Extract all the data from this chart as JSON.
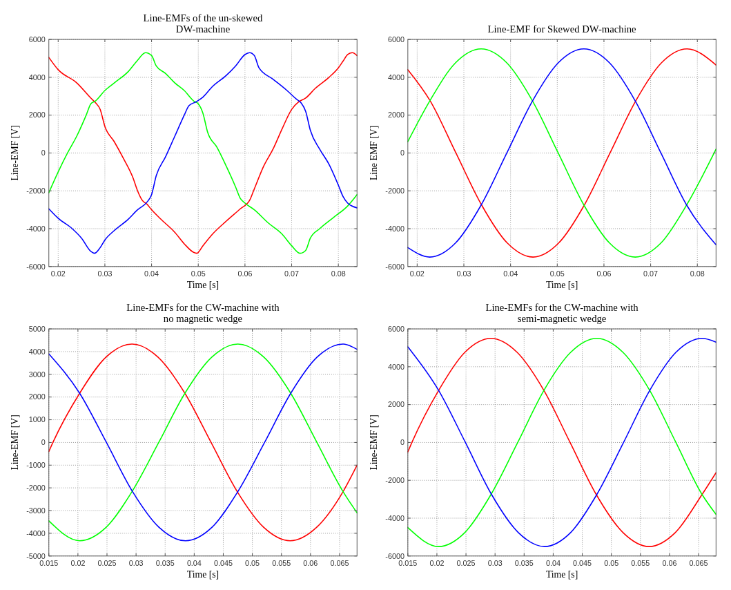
{
  "chart_data": [
    {
      "type": "line",
      "title": "Line-EMFs of the un-skewed\nDW-machine",
      "xlabel": "Time [s]",
      "ylabel": "Line-EMF [V]",
      "xlim": [
        0.018,
        0.084
      ],
      "ylim": [
        -6000,
        6000
      ],
      "xticks": [
        0.02,
        0.03,
        0.04,
        0.05,
        0.06,
        0.07,
        0.08
      ],
      "yticks": [
        -6000,
        -4000,
        -2000,
        0,
        2000,
        4000,
        6000
      ],
      "grid": true,
      "series": [
        {
          "color": "#ff0000",
          "x": [
            0.018,
            0.02,
            0.024,
            0.027,
            0.028,
            0.029,
            0.03,
            0.032,
            0.034,
            0.036,
            0.037,
            0.038,
            0.039,
            0.04,
            0.042,
            0.045,
            0.047,
            0.049,
            0.0497,
            0.051,
            0.053,
            0.056,
            0.059,
            0.061,
            0.062,
            0.064,
            0.066,
            0.068,
            0.07,
            0.0715,
            0.073,
            0.075,
            0.078,
            0.08,
            0.081,
            0.082,
            0.083,
            0.084
          ],
          "values": [
            5050,
            4400,
            3700,
            2900,
            2650,
            2300,
            1400,
            600,
            -300,
            -1300,
            -2000,
            -2500,
            -2700,
            -3000,
            -3500,
            -4200,
            -4800,
            -5250,
            -5300,
            -4900,
            -4300,
            -3600,
            -2950,
            -2500,
            -1900,
            -700,
            200,
            1300,
            2300,
            2700,
            2900,
            3400,
            4000,
            4500,
            4850,
            5200,
            5300,
            5150
          ]
        },
        {
          "color": "#00ff00",
          "x": [
            0.018,
            0.02,
            0.022,
            0.024,
            0.026,
            0.027,
            0.028,
            0.03,
            0.032,
            0.035,
            0.037,
            0.0387,
            0.04,
            0.041,
            0.043,
            0.045,
            0.047,
            0.049,
            0.05,
            0.051,
            0.052,
            0.054,
            0.056,
            0.058,
            0.059,
            0.06,
            0.062,
            0.065,
            0.068,
            0.07,
            0.0718,
            0.073,
            0.074,
            0.076,
            0.079,
            0.082,
            0.084
          ],
          "values": [
            -2100,
            -1000,
            0,
            900,
            2000,
            2600,
            2750,
            3300,
            3700,
            4300,
            4900,
            5300,
            5150,
            4600,
            4200,
            3700,
            3300,
            2750,
            2600,
            2100,
            1100,
            300,
            -700,
            -1800,
            -2400,
            -2650,
            -3000,
            -3700,
            -4300,
            -4900,
            -5300,
            -5150,
            -4500,
            -4000,
            -3400,
            -2800,
            -2200
          ]
        },
        {
          "color": "#0000ff",
          "x": [
            0.018,
            0.02,
            0.023,
            0.025,
            0.027,
            0.0278,
            0.029,
            0.03,
            0.032,
            0.035,
            0.037,
            0.039,
            0.04,
            0.041,
            0.043,
            0.045,
            0.047,
            0.048,
            0.0495,
            0.051,
            0.053,
            0.056,
            0.058,
            0.06,
            0.061,
            0.062,
            0.063,
            0.066,
            0.069,
            0.071,
            0.072,
            0.073,
            0.074,
            0.076,
            0.078,
            0.08,
            0.081,
            0.082,
            0.084
          ],
          "values": [
            -2950,
            -3450,
            -4000,
            -4500,
            -5200,
            -5300,
            -5000,
            -4600,
            -4100,
            -3500,
            -3000,
            -2600,
            -2200,
            -1200,
            -200,
            900,
            2000,
            2500,
            2700,
            2950,
            3500,
            4100,
            4600,
            5200,
            5300,
            5150,
            4500,
            3900,
            3300,
            2850,
            2650,
            2200,
            1200,
            200,
            -600,
            -1700,
            -2300,
            -2650,
            -2900
          ]
        }
      ]
    },
    {
      "type": "line",
      "title": "Line-EMF for Skewed DW-machine",
      "xlabel": "Time [s]",
      "ylabel": "Line EMF [V]",
      "xlim": [
        0.018,
        0.084
      ],
      "ylim": [
        -6000,
        6000
      ],
      "xticks": [
        0.02,
        0.03,
        0.04,
        0.05,
        0.06,
        0.07,
        0.08
      ],
      "yticks": [
        -6000,
        -4000,
        -2000,
        0,
        2000,
        4000,
        6000
      ],
      "grid": true,
      "series": [
        {
          "color": "#ff0000",
          "x": [
            0.018,
            0.0228,
            0.0283,
            0.0338,
            0.0393,
            0.0448,
            0.0503,
            0.0558,
            0.0613,
            0.0668,
            0.0723,
            0.0778,
            0.084
          ],
          "values": [
            4400,
            2750,
            0,
            -2750,
            -4760,
            -5500,
            -4760,
            -2750,
            0,
            2750,
            4760,
            5500,
            4650
          ]
        },
        {
          "color": "#00ff00",
          "x": [
            0.018,
            0.0227,
            0.0282,
            0.0337,
            0.0392,
            0.0447,
            0.0502,
            0.0557,
            0.0612,
            0.0667,
            0.0722,
            0.0777,
            0.084
          ],
          "values": [
            600,
            2750,
            4760,
            5500,
            4760,
            2750,
            0,
            -2750,
            -4760,
            -5500,
            -4760,
            -2750,
            200
          ]
        },
        {
          "color": "#0000ff",
          "x": [
            0.018,
            0.0227,
            0.0282,
            0.0337,
            0.0392,
            0.0447,
            0.0502,
            0.0557,
            0.0612,
            0.0667,
            0.0722,
            0.0777,
            0.084
          ],
          "values": [
            -5000,
            -5500,
            -4760,
            -2750,
            0,
            2750,
            4760,
            5500,
            4760,
            2750,
            0,
            -2750,
            -4850
          ]
        }
      ]
    },
    {
      "type": "line",
      "title": "Line-EMFs for the CW-machine with\nno magnetic wedge",
      "xlabel": "Time [s]",
      "ylabel": "Line-EMF [V]",
      "xlim": [
        0.015,
        0.068
      ],
      "ylim": [
        -5000,
        5000
      ],
      "xticks": [
        0.015,
        0.02,
        0.025,
        0.03,
        0.035,
        0.04,
        0.045,
        0.05,
        0.055,
        0.06,
        0.065
      ],
      "yticks": [
        -5000,
        -4000,
        -3000,
        -2000,
        -1000,
        0,
        1000,
        2000,
        3000,
        4000,
        5000
      ],
      "grid": true,
      "series": [
        {
          "color": "#ff0000",
          "x": [
            0.015,
            0.0157,
            0.0203,
            0.0248,
            0.0293,
            0.0338,
            0.0384,
            0.0429,
            0.0474,
            0.052,
            0.0565,
            0.061,
            0.0656,
            0.068
          ],
          "values": [
            -400,
            0,
            2165,
            3750,
            4330,
            3750,
            2165,
            0,
            -2165,
            -3750,
            -4330,
            -3750,
            -2165,
            -1000
          ]
        },
        {
          "color": "#00ff00",
          "x": [
            0.015,
            0.0203,
            0.0248,
            0.0293,
            0.0339,
            0.0384,
            0.043,
            0.0475,
            0.052,
            0.0566,
            0.0611,
            0.0656,
            0.068
          ],
          "values": [
            -3450,
            -4330,
            -3750,
            -2165,
            0,
            2165,
            3750,
            4330,
            3750,
            2165,
            0,
            -2165,
            -3100
          ]
        },
        {
          "color": "#0000ff",
          "x": [
            0.015,
            0.0203,
            0.0249,
            0.0294,
            0.034,
            0.0385,
            0.043,
            0.0475,
            0.0521,
            0.0566,
            0.0611,
            0.0656,
            0.068
          ],
          "values": [
            3900,
            2165,
            0,
            -2165,
            -3750,
            -4330,
            -3750,
            -2165,
            0,
            2165,
            3750,
            4330,
            4100
          ]
        }
      ]
    },
    {
      "type": "line",
      "title": "Line-EMFs for the CW-machine with\nsemi-magnetic wedge",
      "xlabel": "Time [s]",
      "ylabel": "Line-EMF [V]",
      "xlim": [
        0.015,
        0.068
      ],
      "ylim": [
        -6000,
        6000
      ],
      "xticks": [
        0.015,
        0.02,
        0.025,
        0.03,
        0.035,
        0.04,
        0.045,
        0.05,
        0.055,
        0.06,
        0.065
      ],
      "yticks": [
        -6000,
        -4000,
        -2000,
        0,
        2000,
        4000,
        6000
      ],
      "grid": true,
      "series": [
        {
          "color": "#ff0000",
          "x": [
            0.015,
            0.0157,
            0.0203,
            0.0248,
            0.0293,
            0.0338,
            0.0384,
            0.0429,
            0.0474,
            0.052,
            0.0565,
            0.061,
            0.0656,
            0.068
          ],
          "values": [
            -500,
            0,
            2750,
            4760,
            5500,
            4760,
            2750,
            0,
            -2750,
            -4760,
            -5500,
            -4760,
            -2750,
            -1600
          ]
        },
        {
          "color": "#00ff00",
          "x": [
            0.015,
            0.0203,
            0.0248,
            0.0293,
            0.0339,
            0.0384,
            0.043,
            0.0475,
            0.052,
            0.0566,
            0.0611,
            0.0656,
            0.068
          ],
          "values": [
            -4500,
            -5500,
            -4760,
            -2750,
            0,
            2750,
            4760,
            5500,
            4760,
            2750,
            0,
            -2750,
            -3800
          ]
        },
        {
          "color": "#0000ff",
          "x": [
            0.015,
            0.0203,
            0.0249,
            0.0294,
            0.034,
            0.0385,
            0.043,
            0.0475,
            0.0521,
            0.0566,
            0.0611,
            0.0656,
            0.068
          ],
          "values": [
            5050,
            2750,
            0,
            -2750,
            -4760,
            -5500,
            -4760,
            -2750,
            0,
            2750,
            4760,
            5500,
            5300
          ]
        }
      ]
    }
  ]
}
